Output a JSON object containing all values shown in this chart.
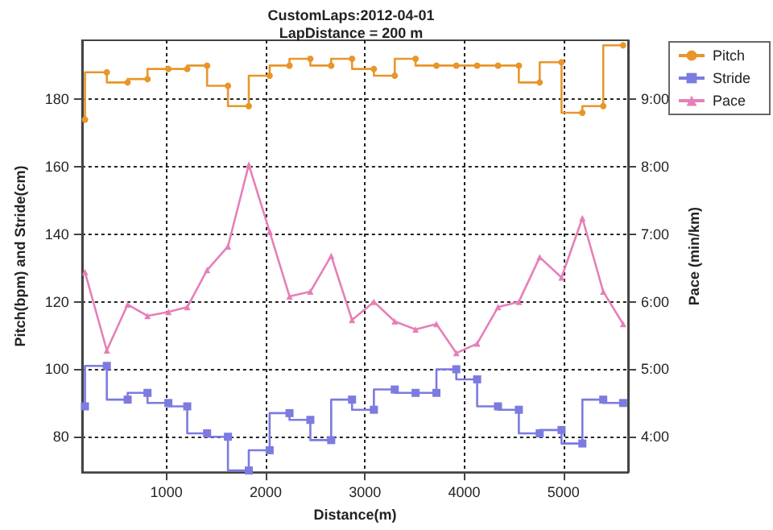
{
  "chart_data": {
    "type": "line",
    "title": "CustomLaps:2012-04-01",
    "subtitle": "LapDistance = 200 m",
    "xlabel": "Distance(m)",
    "ylabel": "Pitch(bpm) and Stride(cm)",
    "y2label": "Pace (min/km)",
    "x": [
      180,
      400,
      610,
      810,
      1020,
      1210,
      1410,
      1620,
      1830,
      2040,
      2240,
      2450,
      2660,
      2870,
      3090,
      3300,
      3510,
      3720,
      3920,
      4130,
      4340,
      4550,
      4760,
      4980,
      5190,
      5400,
      5600
    ],
    "series": [
      {
        "name": "Pitch",
        "type": "step",
        "color": "#e8962a",
        "marker": "circle",
        "values": [
          174,
          188,
          185,
          186,
          189,
          189,
          190,
          184,
          178,
          187,
          190,
          192,
          190,
          192,
          189,
          187,
          192,
          190,
          190,
          190,
          190,
          190,
          185,
          191,
          176,
          178,
          196
        ]
      },
      {
        "name": "Stride",
        "type": "step",
        "color": "#7b7be0",
        "marker": "square",
        "values": [
          89,
          101,
          91,
          93,
          90,
          89,
          81,
          80,
          70,
          76,
          87,
          85,
          79,
          91,
          88,
          94,
          93,
          93,
          100,
          97,
          89,
          88,
          81,
          82,
          78,
          91,
          90
        ]
      },
      {
        "name": "Pace",
        "axis": "y2",
        "color": "#e67fb9",
        "marker": "triangle",
        "values": [
          6.44,
          5.28,
          5.96,
          5.79,
          5.85,
          5.92,
          6.47,
          6.82,
          8.03,
          7.04,
          6.08,
          6.15,
          6.68,
          5.73,
          6.0,
          5.71,
          5.59,
          5.67,
          5.24,
          5.38,
          5.92,
          6.0,
          6.66,
          6.36,
          7.24,
          6.15,
          5.67
        ]
      }
    ],
    "xlim": [
      150,
      5650
    ],
    "xticks": [
      1000,
      2000,
      3000,
      4000,
      5000
    ],
    "ylim": [
      69.5,
      197.5
    ],
    "yticks": [
      80,
      100,
      120,
      140,
      160,
      180
    ],
    "y2lim": [
      3.475,
      9.875
    ],
    "y2ticks": [
      {
        "value": 4,
        "label": "4:00"
      },
      {
        "value": 5,
        "label": "5:00"
      },
      {
        "value": 6,
        "label": "6:00"
      },
      {
        "value": 7,
        "label": "7:00"
      },
      {
        "value": 8,
        "label": "8:00"
      },
      {
        "value": 9,
        "label": "9:00"
      }
    ],
    "grid": true,
    "legend": "right"
  }
}
